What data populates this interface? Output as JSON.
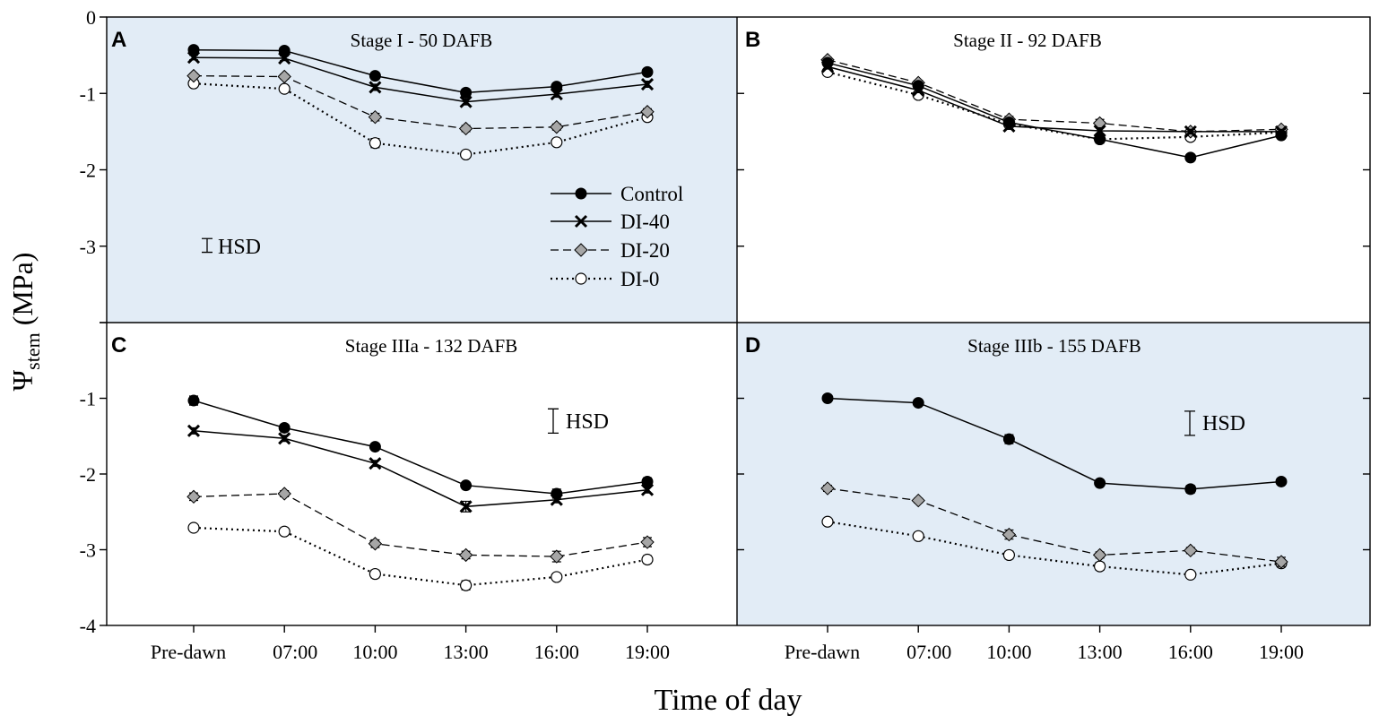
{
  "chart_data": {
    "type": "line",
    "title": "",
    "xlabel": "Time of day",
    "ylabel_symbol": "Ψ",
    "ylabel_subscript": "stem",
    "ylabel_unit": "(MPa)",
    "categories": [
      "Pre-dawn",
      "07:00",
      "10:00",
      "13:00",
      "16:00",
      "19:00"
    ],
    "hsd_label": "HSD",
    "legend": [
      {
        "key": "control",
        "name": "Control"
      },
      {
        "key": "di40",
        "name": "DI-40"
      },
      {
        "key": "di20",
        "name": "DI-20"
      },
      {
        "key": "di0",
        "name": "DI-0"
      }
    ],
    "panels": [
      {
        "letter": "A",
        "title": "Stage I - 50 DAFB",
        "ylim": [
          -4,
          0
        ],
        "yticks": [
          0,
          -1,
          -2,
          -3
        ],
        "shaded": true,
        "hsd_length": 0.18,
        "series": [
          {
            "key": "control",
            "values": [
              -0.43,
              -0.44,
              -0.77,
              -0.99,
              -0.91,
              -0.72
            ],
            "err": [
              0.03,
              0.03,
              0.04,
              0.04,
              0.04,
              0.04
            ]
          },
          {
            "key": "di40",
            "values": [
              -0.53,
              -0.54,
              -0.92,
              -1.11,
              -1.01,
              -0.88
            ],
            "err": [
              0.03,
              0.03,
              0.04,
              0.04,
              0.04,
              0.04
            ]
          },
          {
            "key": "di20",
            "values": [
              -0.77,
              -0.78,
              -1.31,
              -1.46,
              -1.44,
              -1.24
            ],
            "err": [
              0.03,
              0.03,
              0.05,
              0.04,
              0.04,
              0.04
            ]
          },
          {
            "key": "di0",
            "values": [
              -0.87,
              -0.94,
              -1.65,
              -1.8,
              -1.64,
              -1.31
            ],
            "err": [
              0.03,
              0.03,
              0.06,
              0.04,
              0.04,
              0.04
            ]
          }
        ]
      },
      {
        "letter": "B",
        "title": "Stage II - 92 DAFB",
        "ylim": [
          -4,
          0
        ],
        "yticks": [],
        "shaded": false,
        "series": [
          {
            "key": "control",
            "values": [
              -0.6,
              -0.9,
              -1.38,
              -1.6,
              -1.84,
              -1.55
            ],
            "err": [
              0.03,
              0.03,
              0.04,
              0.04,
              0.04,
              0.03
            ]
          },
          {
            "key": "di40",
            "values": [
              -0.65,
              -0.96,
              -1.43,
              -1.49,
              -1.5,
              -1.5
            ],
            "err": [
              0.03,
              0.03,
              0.04,
              0.04,
              0.03,
              0.03
            ]
          },
          {
            "key": "di20",
            "values": [
              -0.56,
              -0.86,
              -1.34,
              -1.39,
              -1.5,
              -1.47
            ],
            "err": [
              0.03,
              0.03,
              0.04,
              0.05,
              0.04,
              0.03
            ]
          },
          {
            "key": "di0",
            "values": [
              -0.72,
              -1.02,
              -1.4,
              -1.6,
              -1.57,
              -1.51
            ],
            "err": [
              0.03,
              0.03,
              0.04,
              0.05,
              0.04,
              0.03
            ]
          }
        ]
      },
      {
        "letter": "C",
        "title": "Stage IIIa - 132 DAFB",
        "ylim": [
          -4,
          0
        ],
        "yticks": [
          -1,
          -2,
          -3,
          -4
        ],
        "shaded": false,
        "hsd_length": 0.32,
        "series": [
          {
            "key": "control",
            "values": [
              -1.03,
              -1.39,
              -1.64,
              -2.15,
              -2.26,
              -2.1
            ],
            "err": [
              0.06,
              0.04,
              0.04,
              0.04,
              0.06,
              0.05
            ]
          },
          {
            "key": "di40",
            "values": [
              -1.43,
              -1.53,
              -1.86,
              -2.43,
              -2.34,
              -2.21
            ],
            "err": [
              0.04,
              0.04,
              0.04,
              0.07,
              0.04,
              0.04
            ]
          },
          {
            "key": "di20",
            "values": [
              -2.3,
              -2.26,
              -2.92,
              -3.07,
              -3.09,
              -2.9
            ],
            "err": [
              0.05,
              0.04,
              0.05,
              0.05,
              0.07,
              0.06
            ]
          },
          {
            "key": "di0",
            "values": [
              -2.71,
              -2.76,
              -3.32,
              -3.47,
              -3.36,
              -3.13
            ],
            "err": [
              0.04,
              0.04,
              0.05,
              0.06,
              0.04,
              0.05
            ]
          }
        ]
      },
      {
        "letter": "D",
        "title": "Stage IIIb - 155 DAFB",
        "ylim": [
          -4,
          0
        ],
        "yticks": [],
        "shaded": true,
        "hsd_length": 0.32,
        "series": [
          {
            "key": "control",
            "values": [
              -1.0,
              -1.06,
              -1.54,
              -2.12,
              -2.2,
              -2.1
            ],
            "err": [
              0.03,
              0.03,
              0.06,
              0.04,
              0.05,
              0.04
            ]
          },
          {
            "key": "di20",
            "values": [
              -2.19,
              -2.35,
              -2.8,
              -3.07,
              -3.01,
              -3.16
            ],
            "err": [
              0.04,
              0.03,
              0.06,
              0.04,
              0.04,
              0.06
            ]
          },
          {
            "key": "di0",
            "values": [
              -2.63,
              -2.82,
              -3.07,
              -3.22,
              -3.33,
              -3.18
            ],
            "err": [
              0.03,
              0.04,
              0.05,
              0.05,
              0.04,
              0.05
            ]
          }
        ]
      }
    ]
  },
  "colors": {
    "shade": "#e2ecf6",
    "line": "#000000",
    "di20_fill": "#a6a6a6",
    "di0_fill": "#ffffff"
  }
}
